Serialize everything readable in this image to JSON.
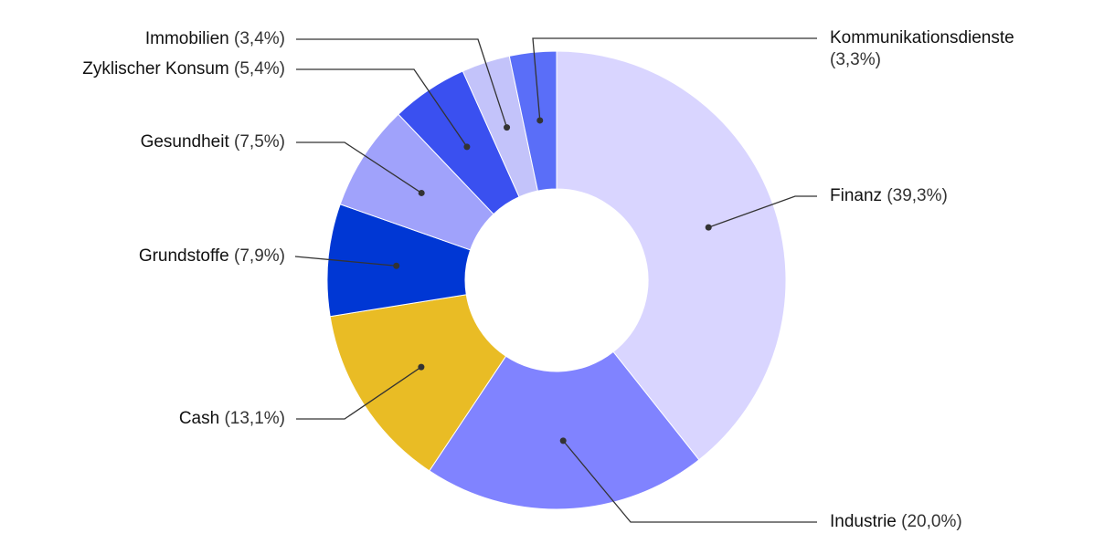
{
  "chart_data": {
    "type": "donut",
    "categories": [
      "Finanz",
      "Industrie",
      "Cash",
      "Grundstoffe",
      "Gesundheit",
      "Zyklischer Konsum",
      "Immobilien",
      "Kommunikationsdienste"
    ],
    "values": [
      39.3,
      20.0,
      13.1,
      7.9,
      7.5,
      5.4,
      3.4,
      3.3
    ],
    "value_labels": [
      "(39,3%)",
      "(20,0%)",
      "(13,1%)",
      "(7,9%)",
      "(7,5%)",
      "(5,4%)",
      "(3,4%)",
      "(3,3%)"
    ],
    "colors": [
      "#d9d5ff",
      "#8083ff",
      "#e9bc25",
      "#0037d4",
      "#a0a2fb",
      "#3a50f0",
      "#c3c3fa",
      "#5a6ef8"
    ]
  }
}
